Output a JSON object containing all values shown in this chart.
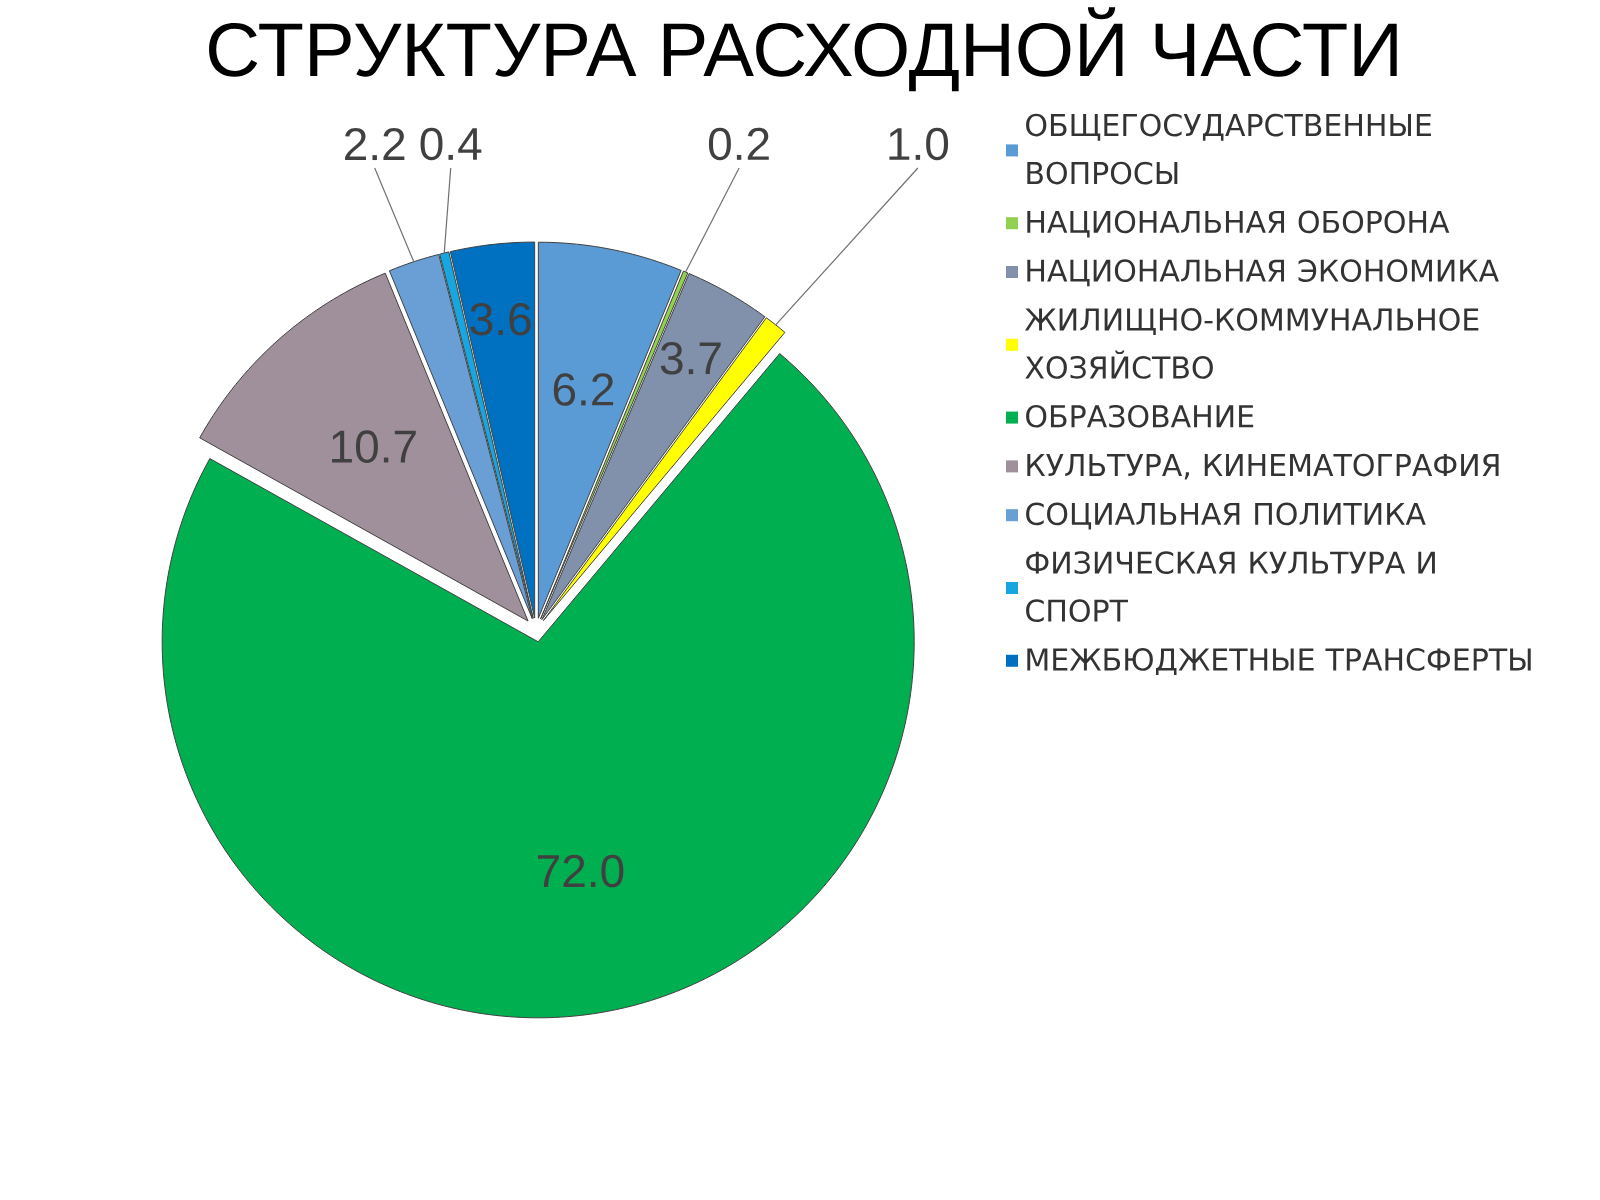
{
  "chart_data": {
    "type": "pie",
    "title": "СТРУКТУРА РАСХОДНОЙ ЧАСТИ",
    "categories": [
      "ОБЩЕГОСУДАРСТВЕННЫЕ ВОПРОСЫ",
      "НАЦИОНАЛЬНАЯ ОБОРОНА",
      "НАЦИОНАЛЬНАЯ ЭКОНОМИКА",
      "ЖИЛИЩНО-КОММУНАЛЬНОЕ ХОЗЯЙСТВО",
      "ОБРАЗОВАНИЕ",
      "КУЛЬТУРА, КИНЕМАТОГРАФИЯ",
      "СОЦИАЛЬНАЯ ПОЛИТИКА",
      "ФИЗИЧЕСКАЯ КУЛЬТУРА И СПОРТ",
      "МЕЖБЮДЖЕТНЫЕ ТРАНСФЕРТЫ"
    ],
    "values": [
      6.2,
      0.2,
      3.7,
      1.0,
      72.0,
      10.7,
      2.2,
      0.4,
      3.6
    ],
    "colors": [
      "#5b9bd5",
      "#92d050",
      "#8191ab",
      "#ffff00",
      "#00b050",
      "#a0909c",
      "#6a9fd6",
      "#17a6e0",
      "#0070c0"
    ],
    "value_labels": [
      "6.2",
      "0.2",
      "3.7",
      "1.0",
      "72.0",
      "10.7",
      "2.2",
      "0.4",
      "3.6"
    ],
    "legend": "right"
  }
}
